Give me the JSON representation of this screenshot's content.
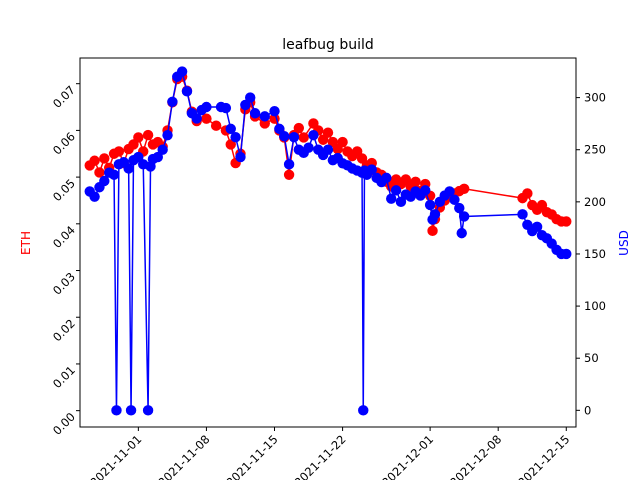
{
  "chart_data": {
    "type": "line",
    "title": "leafbug build",
    "xlabel": "",
    "ylabel_left": "ETH",
    "ylabel_right": "USD",
    "ylabel_left_color": "#ff0000",
    "ylabel_right_color": "#0000ff",
    "x_tick_labels": [
      "2021-11-01",
      "2021-11-08",
      "2021-11-15",
      "2021-11-22",
      "2021-12-01",
      "2021-12-08",
      "2021-12-15"
    ],
    "x_tick_dates": [
      "2021-11-01",
      "2021-11-08",
      "2021-11-15",
      "2021-11-22",
      "2021-12-01",
      "2021-12-08",
      "2021-12-15"
    ],
    "xlim": [
      "2021-10-26",
      "2021-12-16"
    ],
    "ylim_left": [
      -0.0035,
      0.0755
    ],
    "yticks_left": [
      0.0,
      0.01,
      0.02,
      0.03,
      0.04,
      0.05,
      0.06,
      0.07
    ],
    "ylim_right": [
      -16,
      338
    ],
    "yticks_right": [
      0,
      50,
      100,
      150,
      200,
      250,
      300
    ],
    "grid": false,
    "series": [
      {
        "axis": "left",
        "color": "#ff0000",
        "points": [
          [
            "2021-10-27 00:00",
            0.0525
          ],
          [
            "2021-10-27 12:00",
            0.0535
          ],
          [
            "2021-10-28 00:00",
            0.051
          ],
          [
            "2021-10-28 12:00",
            0.054
          ],
          [
            "2021-10-29 00:00",
            0.052
          ],
          [
            "2021-10-29 12:00",
            0.055
          ],
          [
            "2021-10-30 00:00",
            0.0555
          ],
          [
            "2021-10-30 12:00",
            0.053
          ],
          [
            "2021-10-31 00:00",
            0.056
          ],
          [
            "2021-10-31 12:00",
            0.057
          ],
          [
            "2021-11-01 00:00",
            0.0585
          ],
          [
            "2021-11-01 12:00",
            0.0555
          ],
          [
            "2021-11-02 00:00",
            0.059
          ],
          [
            "2021-11-02 12:00",
            0.057
          ],
          [
            "2021-11-03 00:00",
            0.0575
          ],
          [
            "2021-11-03 12:00",
            0.0565
          ],
          [
            "2021-11-04 00:00",
            0.06
          ],
          [
            "2021-11-04 12:00",
            0.066
          ],
          [
            "2021-11-05 00:00",
            0.071
          ],
          [
            "2021-11-05 12:00",
            0.0715
          ],
          [
            "2021-11-06 00:00",
            0.0685
          ],
          [
            "2021-11-06 12:00",
            0.064
          ],
          [
            "2021-11-07 00:00",
            0.062
          ],
          [
            "2021-11-08 00:00",
            0.0625
          ],
          [
            "2021-11-09 00:00",
            0.061
          ],
          [
            "2021-11-10 00:00",
            0.06
          ],
          [
            "2021-11-10 12:00",
            0.057
          ],
          [
            "2021-11-11 00:00",
            0.053
          ],
          [
            "2021-11-11 12:00",
            0.055
          ],
          [
            "2021-11-12 00:00",
            0.0645
          ],
          [
            "2021-11-12 12:00",
            0.066
          ],
          [
            "2021-11-13 00:00",
            0.063
          ],
          [
            "2021-11-14 00:00",
            0.0615
          ],
          [
            "2021-11-15 00:00",
            0.0625
          ],
          [
            "2021-11-15 12:00",
            0.06
          ],
          [
            "2021-11-16 00:00",
            0.0585
          ],
          [
            "2021-11-16 12:00",
            0.0505
          ],
          [
            "2021-11-17 00:00",
            0.059
          ],
          [
            "2021-11-17 12:00",
            0.0605
          ],
          [
            "2021-11-18 00:00",
            0.0585
          ],
          [
            "2021-11-19 00:00",
            0.0615
          ],
          [
            "2021-11-19 12:00",
            0.06
          ],
          [
            "2021-11-20 00:00",
            0.058
          ],
          [
            "2021-11-20 12:00",
            0.0595
          ],
          [
            "2021-11-21 00:00",
            0.0575
          ],
          [
            "2021-11-21 12:00",
            0.056
          ],
          [
            "2021-11-22 00:00",
            0.0575
          ],
          [
            "2021-11-22 12:00",
            0.0555
          ],
          [
            "2021-11-23 00:00",
            0.0545
          ],
          [
            "2021-11-23 12:00",
            0.0555
          ],
          [
            "2021-11-24 00:00",
            0.054
          ],
          [
            "2021-11-24 12:00",
            0.0525
          ],
          [
            "2021-11-25 00:00",
            0.053
          ],
          [
            "2021-11-25 12:00",
            0.051
          ],
          [
            "2021-11-26 00:00",
            0.0505
          ],
          [
            "2021-11-26 12:00",
            0.049
          ],
          [
            "2021-11-27 00:00",
            0.048
          ],
          [
            "2021-11-27 12:00",
            0.0495
          ],
          [
            "2021-11-28 00:00",
            0.0485
          ],
          [
            "2021-11-28 12:00",
            0.0495
          ],
          [
            "2021-11-29 00:00",
            0.048
          ],
          [
            "2021-11-29 12:00",
            0.049
          ],
          [
            "2021-11-30 00:00",
            0.047
          ],
          [
            "2021-11-30 12:00",
            0.0485
          ],
          [
            "2021-12-01 00:00",
            0.046
          ],
          [
            "2021-12-01 06:00",
            0.0385
          ],
          [
            "2021-12-01 12:00",
            0.041
          ],
          [
            "2021-12-02 00:00",
            0.0435
          ],
          [
            "2021-12-02 12:00",
            0.045
          ],
          [
            "2021-12-03 00:00",
            0.046
          ],
          [
            "2021-12-03 12:00",
            0.0465
          ],
          [
            "2021-12-04 00:00",
            0.047
          ],
          [
            "2021-12-04 12:00",
            0.0475
          ],
          [
            "2021-12-10 12:00",
            0.0455
          ],
          [
            "2021-12-11 00:00",
            0.0465
          ],
          [
            "2021-12-11 12:00",
            0.044
          ],
          [
            "2021-12-12 00:00",
            0.043
          ],
          [
            "2021-12-12 12:00",
            0.044
          ],
          [
            "2021-12-13 00:00",
            0.0425
          ],
          [
            "2021-12-13 12:00",
            0.042
          ],
          [
            "2021-12-14 00:00",
            0.041
          ],
          [
            "2021-12-14 12:00",
            0.0405
          ],
          [
            "2021-12-15 00:00",
            0.0405
          ]
        ]
      },
      {
        "axis": "right",
        "color": "#0000ff",
        "points": [
          [
            "2021-10-27 00:00",
            210
          ],
          [
            "2021-10-27 12:00",
            205
          ],
          [
            "2021-10-28 00:00",
            214
          ],
          [
            "2021-10-28 12:00",
            220
          ],
          [
            "2021-10-29 00:00",
            228
          ],
          [
            "2021-10-29 12:00",
            226
          ],
          [
            "2021-10-29 18:00",
            0
          ],
          [
            "2021-10-30 00:00",
            236
          ],
          [
            "2021-10-30 12:00",
            238
          ],
          [
            "2021-10-31 00:00",
            232
          ],
          [
            "2021-10-31 06:00",
            0
          ],
          [
            "2021-10-31 12:00",
            240
          ],
          [
            "2021-11-01 00:00",
            243
          ],
          [
            "2021-11-01 12:00",
            236
          ],
          [
            "2021-11-02 00:00",
            0
          ],
          [
            "2021-11-02 06:00",
            234
          ],
          [
            "2021-11-02 12:00",
            241
          ],
          [
            "2021-11-03 00:00",
            243
          ],
          [
            "2021-11-03 12:00",
            250
          ],
          [
            "2021-11-04 00:00",
            264
          ],
          [
            "2021-11-04 12:00",
            296
          ],
          [
            "2021-11-05 00:00",
            320
          ],
          [
            "2021-11-05 12:00",
            325
          ],
          [
            "2021-11-06 00:00",
            306
          ],
          [
            "2021-11-06 12:00",
            285
          ],
          [
            "2021-11-07 00:00",
            280
          ],
          [
            "2021-11-07 12:00",
            288
          ],
          [
            "2021-11-08 00:00",
            291
          ],
          [
            "2021-11-09 12:00",
            291
          ],
          [
            "2021-11-10 00:00",
            290
          ],
          [
            "2021-11-10 12:00",
            270
          ],
          [
            "2021-11-11 00:00",
            262
          ],
          [
            "2021-11-11 12:00",
            243
          ],
          [
            "2021-11-12 00:00",
            293
          ],
          [
            "2021-11-12 12:00",
            300
          ],
          [
            "2021-11-13 00:00",
            285
          ],
          [
            "2021-11-14 00:00",
            282
          ],
          [
            "2021-11-15 00:00",
            287
          ],
          [
            "2021-11-15 12:00",
            270
          ],
          [
            "2021-11-16 00:00",
            263
          ],
          [
            "2021-11-16 12:00",
            236
          ],
          [
            "2021-11-17 00:00",
            262
          ],
          [
            "2021-11-17 12:00",
            250
          ],
          [
            "2021-11-18 00:00",
            247
          ],
          [
            "2021-11-18 12:00",
            252
          ],
          [
            "2021-11-19 00:00",
            264
          ],
          [
            "2021-11-19 12:00",
            250
          ],
          [
            "2021-11-20 00:00",
            245
          ],
          [
            "2021-11-20 12:00",
            250
          ],
          [
            "2021-11-21 00:00",
            240
          ],
          [
            "2021-11-21 12:00",
            242
          ],
          [
            "2021-11-22 00:00",
            237
          ],
          [
            "2021-11-22 12:00",
            235
          ],
          [
            "2021-11-23 00:00",
            232
          ],
          [
            "2021-11-23 12:00",
            230
          ],
          [
            "2021-11-24 00:00",
            228
          ],
          [
            "2021-11-24 03:00",
            0
          ],
          [
            "2021-11-24 06:00",
            230
          ],
          [
            "2021-11-24 12:00",
            226
          ],
          [
            "2021-11-25 00:00",
            231
          ],
          [
            "2021-11-25 12:00",
            223
          ],
          [
            "2021-11-26 00:00",
            219
          ],
          [
            "2021-11-26 12:00",
            223
          ],
          [
            "2021-11-27 00:00",
            203
          ],
          [
            "2021-11-27 12:00",
            211
          ],
          [
            "2021-11-28 00:00",
            200
          ],
          [
            "2021-11-28 12:00",
            207
          ],
          [
            "2021-11-29 00:00",
            205
          ],
          [
            "2021-11-29 12:00",
            210
          ],
          [
            "2021-11-30 00:00",
            206
          ],
          [
            "2021-11-30 12:00",
            211
          ],
          [
            "2021-12-01 00:00",
            197
          ],
          [
            "2021-12-01 06:00",
            183
          ],
          [
            "2021-12-01 12:00",
            188
          ],
          [
            "2021-12-02 00:00",
            200
          ],
          [
            "2021-12-02 12:00",
            206
          ],
          [
            "2021-12-03 00:00",
            210
          ],
          [
            "2021-12-03 12:00",
            202
          ],
          [
            "2021-12-04 00:00",
            194
          ],
          [
            "2021-12-04 06:00",
            170
          ],
          [
            "2021-12-04 12:00",
            186
          ],
          [
            "2021-12-10 12:00",
            188
          ],
          [
            "2021-12-11 00:00",
            178
          ],
          [
            "2021-12-11 12:00",
            172
          ],
          [
            "2021-12-12 00:00",
            176
          ],
          [
            "2021-12-12 12:00",
            168
          ],
          [
            "2021-12-13 00:00",
            165
          ],
          [
            "2021-12-13 12:00",
            160
          ],
          [
            "2021-12-14 00:00",
            154
          ],
          [
            "2021-12-14 12:00",
            150
          ],
          [
            "2021-12-15 00:00",
            150
          ]
        ]
      }
    ]
  }
}
